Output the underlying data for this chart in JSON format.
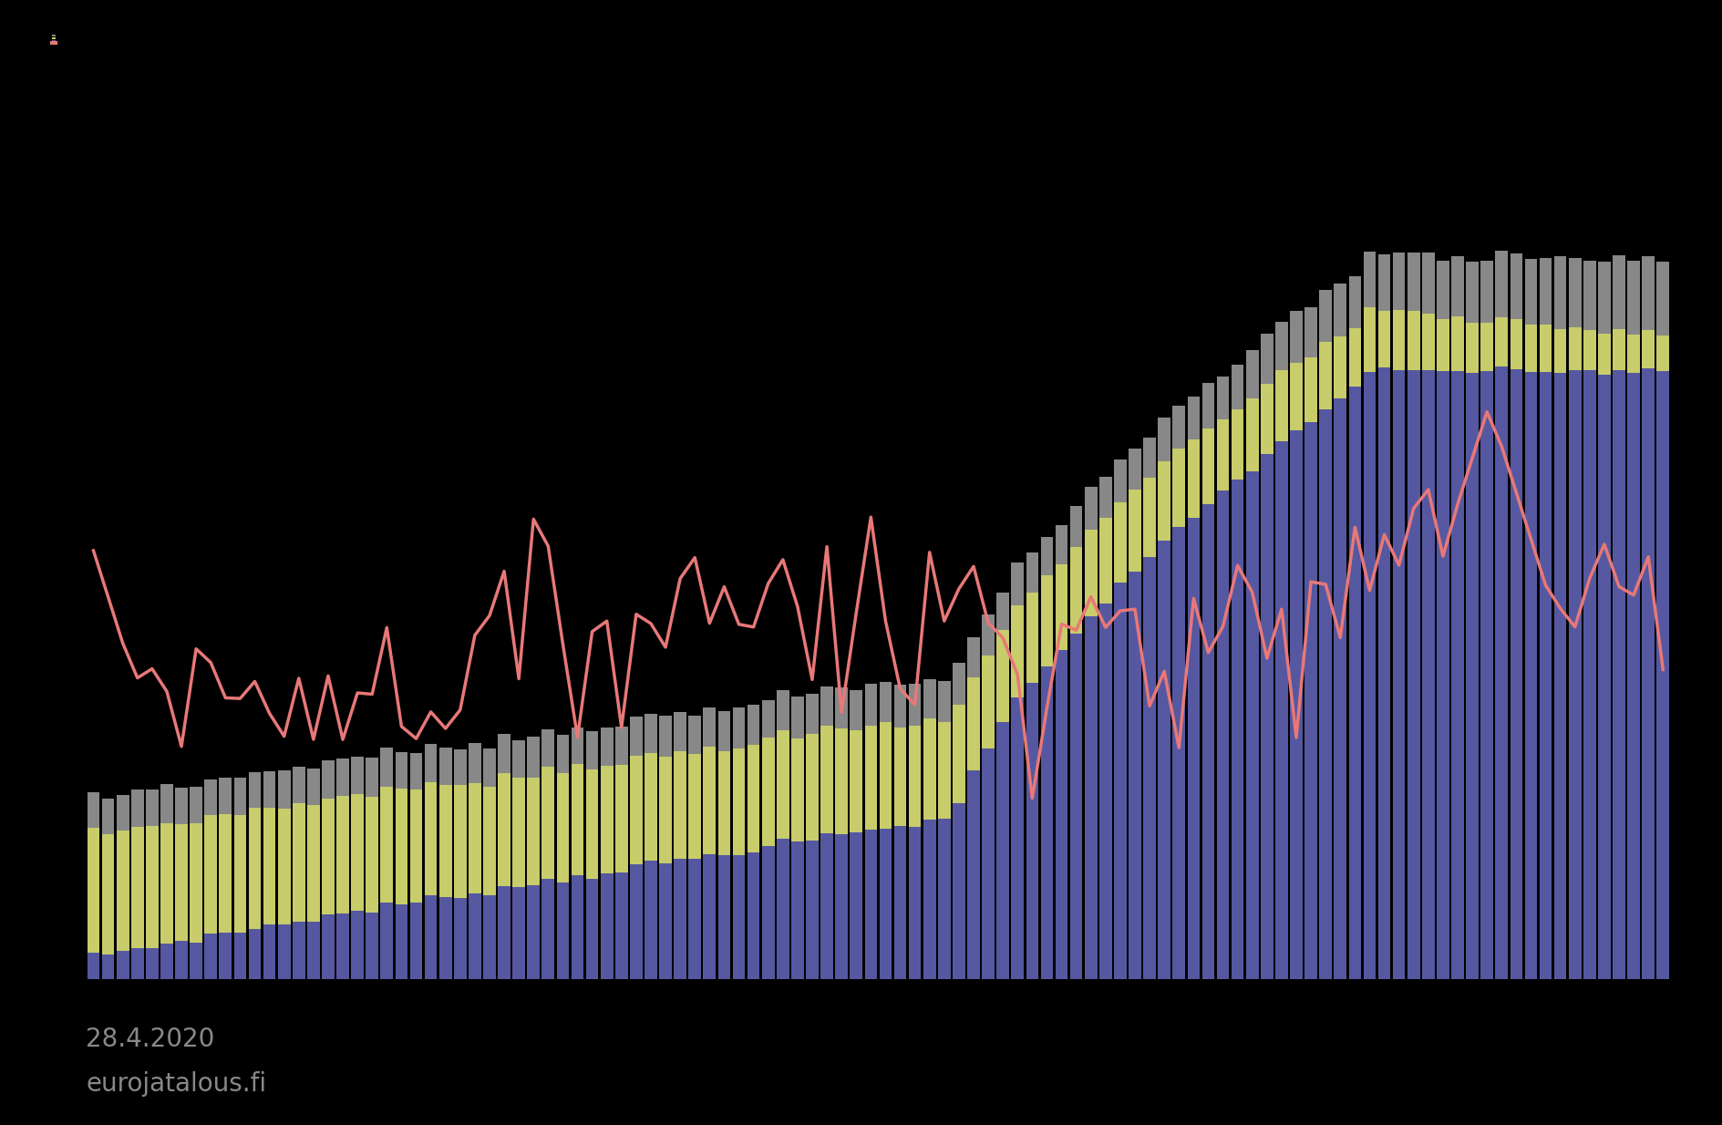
{
  "date_label": "28.4.2020",
  "source_label": "eurojatalous.fi",
  "background_color": "#000000",
  "bar_color_blue": "#5558a0",
  "bar_color_yellow": "#c8cc6a",
  "bar_color_gray": "#888888",
  "line_color": "#e87878",
  "legend_labels": [
    "",
    "",
    "",
    ""
  ],
  "n_bars": 108,
  "ylim_max": 180,
  "line_ylim_min": -15,
  "line_ylim_max": 20
}
